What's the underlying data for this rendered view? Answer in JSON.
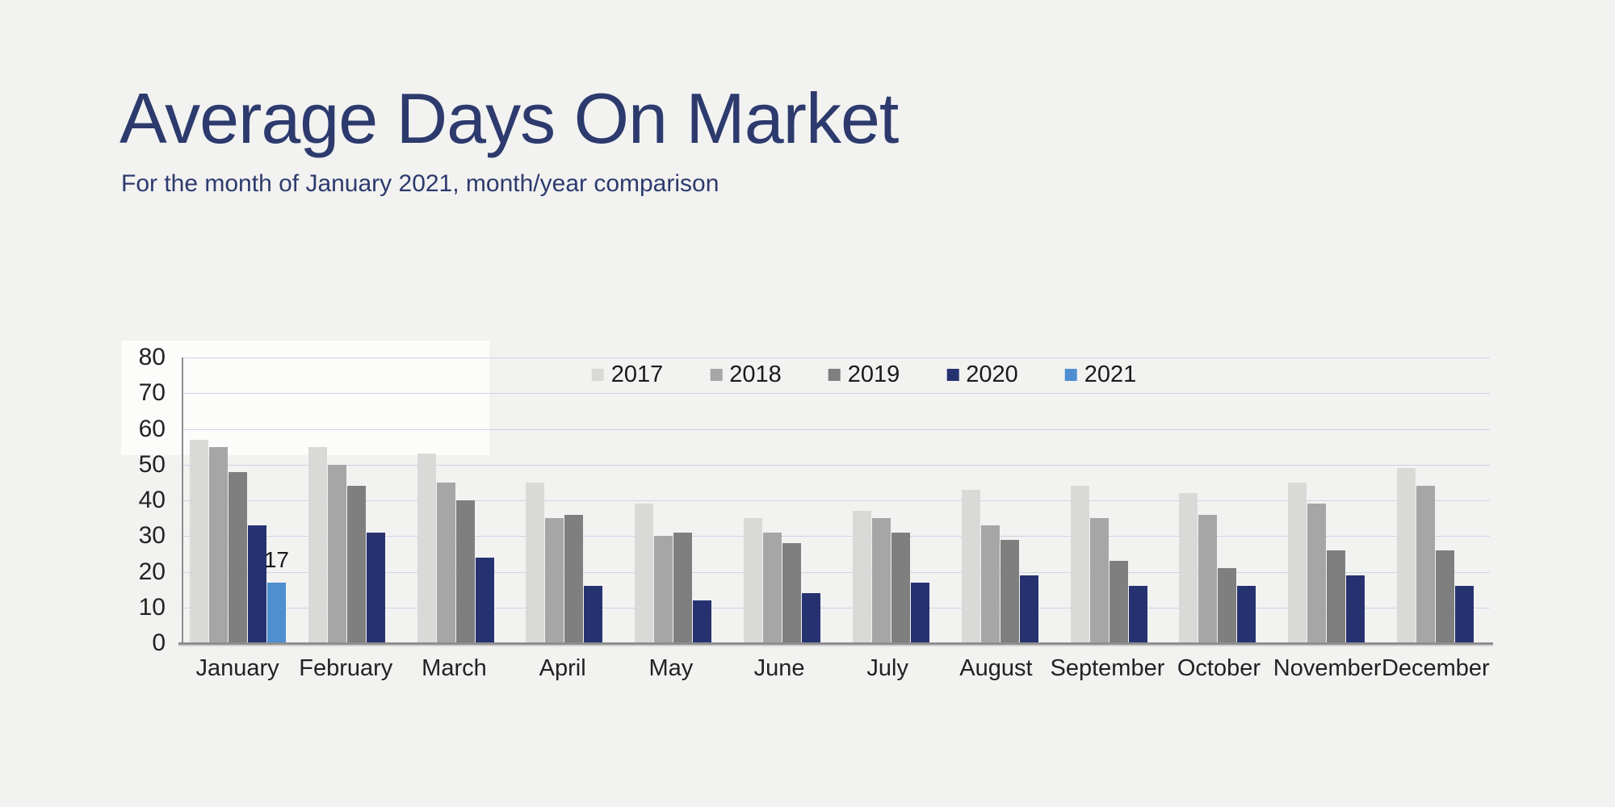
{
  "header": {
    "title": "Average Days On Market",
    "subtitle": "For the month of January 2021, month/year comparison"
  },
  "colors": {
    "background": "#f2f2f1",
    "heading_text": "#2d3a6d",
    "axis_line": "#8e8e8e",
    "gridline": "#ccd5e5",
    "tick_text": "#222222",
    "legend_text": "#1a1a1a",
    "data_label_text": "#1a1a1a",
    "highlight_panel": "rgba(255,255,255,0.72)"
  },
  "chart_data": {
    "type": "bar",
    "title": "Average Days On Market",
    "subtitle": "For the month of January 2021, month/year comparison",
    "xlabel": "",
    "ylabel": "",
    "ylim": [
      0,
      80
    ],
    "ytick_interval": 10,
    "grid": true,
    "legend_position": "top-center",
    "categories": [
      "January",
      "February",
      "March",
      "April",
      "May",
      "June",
      "July",
      "August",
      "September",
      "October",
      "November",
      "December"
    ],
    "series": [
      {
        "name": "2017",
        "color": "#d9d9d7",
        "values": [
          57,
          55,
          53,
          45,
          39,
          35,
          37,
          43,
          44,
          42,
          45,
          49
        ]
      },
      {
        "name": "2018",
        "color": "#a6a6a6",
        "values": [
          55,
          50,
          45,
          35,
          30,
          31,
          35,
          33,
          35,
          36,
          39,
          44
        ]
      },
      {
        "name": "2019",
        "color": "#7f7f7f",
        "values": [
          48,
          44,
          40,
          36,
          31,
          28,
          31,
          29,
          23,
          21,
          26,
          26
        ]
      },
      {
        "name": "2020",
        "color": "#263270",
        "values": [
          33,
          31,
          24,
          16,
          12,
          14,
          17,
          19,
          16,
          16,
          19,
          16
        ]
      },
      {
        "name": "2021",
        "color": "#4d8fd1",
        "values": [
          17,
          null,
          null,
          null,
          null,
          null,
          null,
          null,
          null,
          null,
          null,
          null
        ]
      }
    ],
    "data_labels": [
      {
        "series": "2021",
        "category": "January",
        "text": "17"
      }
    ]
  }
}
